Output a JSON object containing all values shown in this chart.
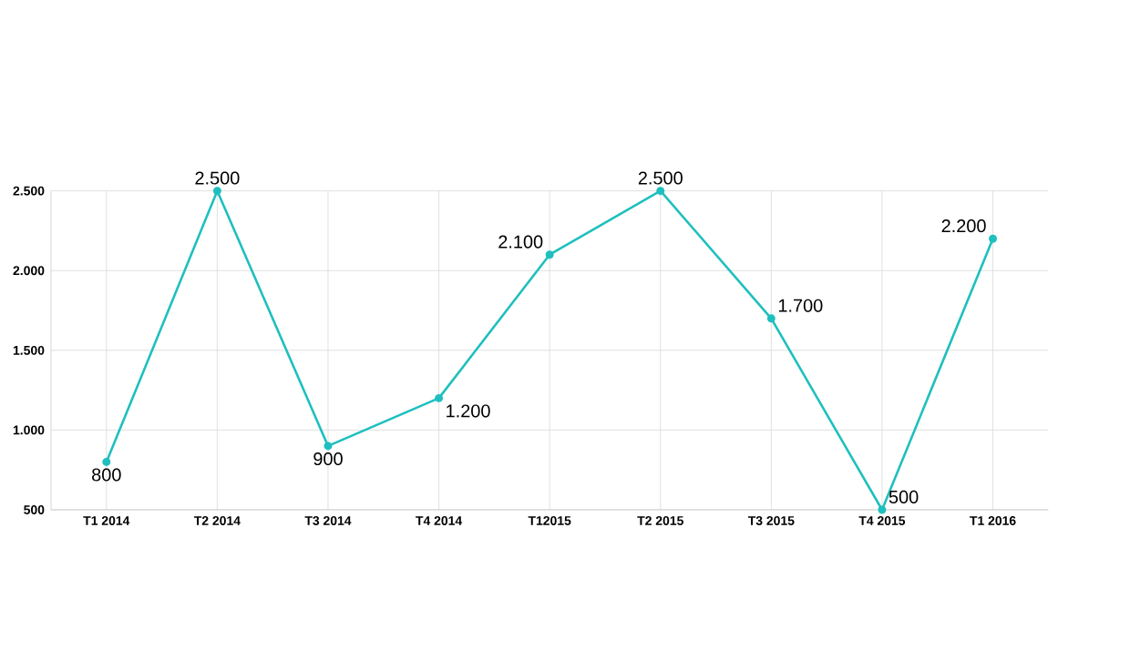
{
  "chart_data": {
    "type": "line",
    "categories": [
      "T1 2014",
      "T2 2014",
      "T3 2014",
      "T4 2014",
      "T12015",
      "T2 2015",
      "T3 2015",
      "T4 2015",
      "T1 2016"
    ],
    "series": [
      {
        "color": "#1fbfbf",
        "values": [
          800,
          2500,
          900,
          1200,
          2100,
          2500,
          1700,
          500,
          2200
        ],
        "value_labels": [
          "800",
          "2.500",
          "900",
          "1.200",
          "2.100",
          "2.500",
          "1.700",
          "500",
          "2.200"
        ]
      }
    ],
    "ylim": [
      500,
      2500
    ],
    "yticks": [
      {
        "value": 500,
        "label": "500"
      },
      {
        "value": 1000,
        "label": "1.000"
      },
      {
        "value": 1500,
        "label": "1.500"
      },
      {
        "value": 2000,
        "label": "2.000"
      },
      {
        "value": 2500,
        "label": "2.500"
      }
    ],
    "grid": true,
    "marker": "circle",
    "line_style": "solid"
  }
}
